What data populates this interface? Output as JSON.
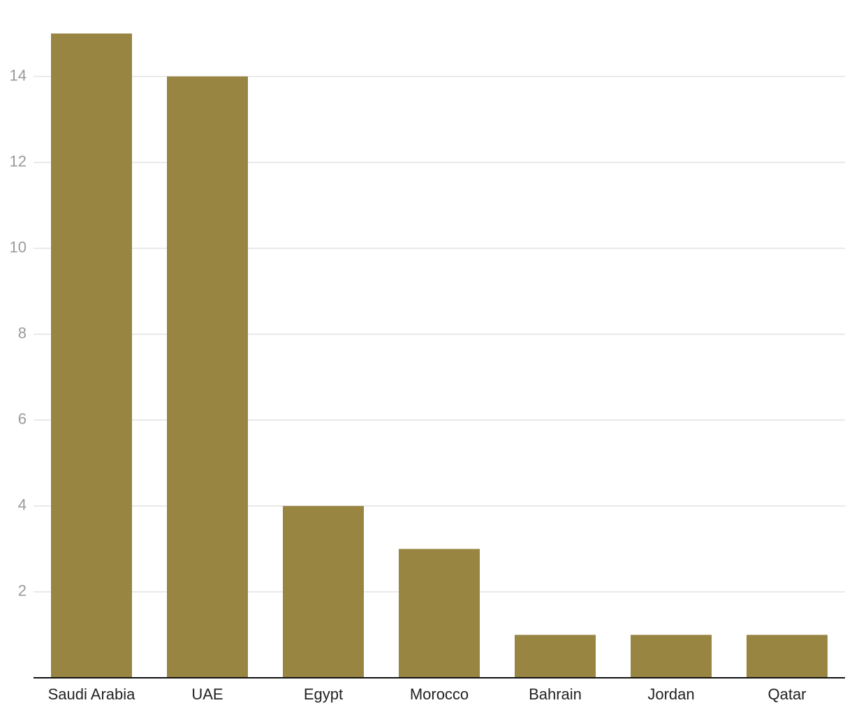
{
  "chart_data": {
    "type": "bar",
    "categories": [
      "Saudi Arabia",
      "UAE",
      "Egypt",
      "Morocco",
      "Bahrain",
      "Jordan",
      "Qatar"
    ],
    "values": [
      15,
      14,
      4,
      3,
      1,
      1,
      1
    ],
    "color": "#988542",
    "ylim": [
      0,
      15
    ],
    "yticks": [
      2,
      4,
      6,
      8,
      10,
      12,
      14
    ],
    "grid": true
  }
}
